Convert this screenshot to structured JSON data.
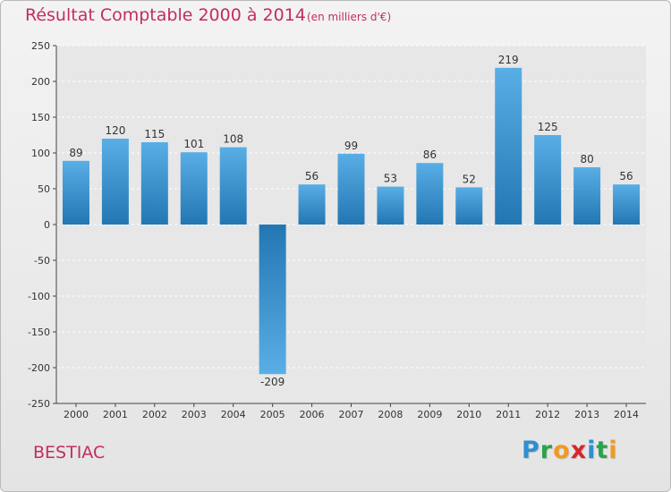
{
  "title": "Résultat Comptable 2000 à 2014",
  "subtitle": "(en milliers d'€)",
  "place": "BESTIAC",
  "brand": {
    "text": "Proxiti",
    "letters": [
      {
        "char": "P",
        "color": "#2e8fd1"
      },
      {
        "char": "r",
        "color": "#2aa34a"
      },
      {
        "char": "o",
        "color": "#f29a1c"
      },
      {
        "char": "x",
        "color": "#d8262c"
      },
      {
        "char": "i",
        "color": "#2e8fd1"
      },
      {
        "char": "t",
        "color": "#2aa34a"
      },
      {
        "char": "i",
        "color": "#f29a1c"
      }
    ]
  },
  "colors": {
    "bar_light": "#5aaee6",
    "bar_dark": "#2277b3",
    "title": "#c22d63",
    "grid": "#ffffff",
    "axis": "#444444"
  },
  "chart_data": {
    "type": "bar",
    "title": "Résultat Comptable 2000 à 2014",
    "subtitle": "(en milliers d'€)",
    "xlabel": "",
    "ylabel": "",
    "categories": [
      "2000",
      "2001",
      "2002",
      "2003",
      "2004",
      "2005",
      "2006",
      "2007",
      "2008",
      "2009",
      "2010",
      "2011",
      "2012",
      "2013",
      "2014"
    ],
    "values": [
      89,
      120,
      115,
      101,
      108,
      -209,
      56,
      99,
      53,
      86,
      52,
      219,
      125,
      80,
      56
    ],
    "ylim": [
      -250,
      250
    ],
    "yticks": [
      250,
      200,
      150,
      100,
      50,
      0,
      -50,
      -100,
      -150,
      -200,
      -250
    ],
    "ytick_labels": [
      "250",
      "200",
      "150",
      "100",
      "50",
      "0",
      "-50",
      "-100",
      "-150",
      "-200",
      "-250"
    ],
    "grid": true
  }
}
